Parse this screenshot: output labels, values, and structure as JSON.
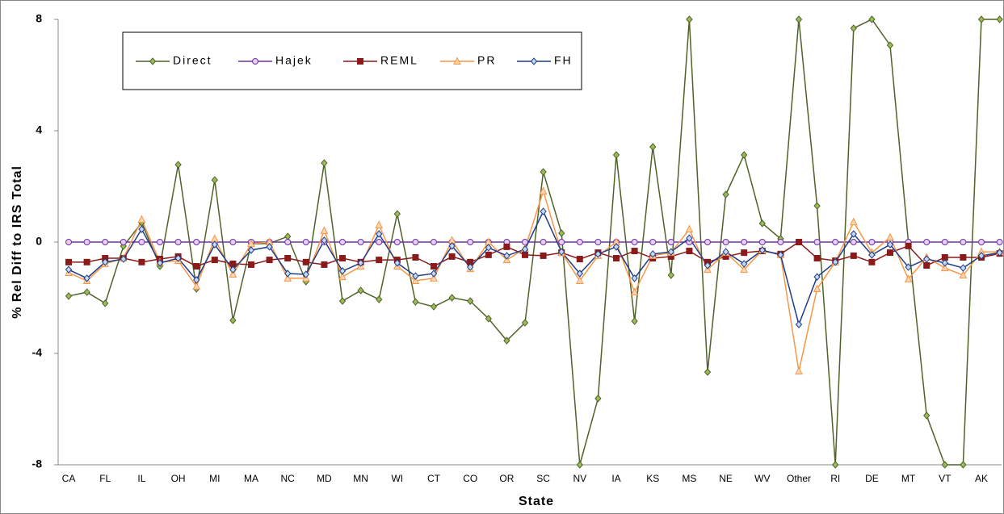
{
  "chart_data": {
    "type": "line",
    "x_label": "State",
    "y_label": "% Rel Diff to IRS Total",
    "categories": [
      "CA",
      null,
      "FL",
      null,
      "IL",
      null,
      "OH",
      null,
      "MI",
      null,
      "MA",
      null,
      "NC",
      null,
      "MD",
      null,
      "MN",
      null,
      "WI",
      null,
      "CT",
      null,
      "CO",
      null,
      "OR",
      null,
      "SC",
      null,
      "NV",
      null,
      "IA",
      null,
      "KS",
      null,
      "MS",
      null,
      "NE",
      null,
      "WV",
      null,
      "Other",
      null,
      "RI",
      null,
      "DE",
      null,
      "MT",
      null,
      "VT",
      null,
      "AK",
      null
    ],
    "ylim": [
      -8,
      8
    ],
    "yticks": [
      -8,
      -4,
      0,
      4,
      8
    ],
    "series": [
      {
        "name": "Direct",
        "color": "#4f6228",
        "marker": "diamond",
        "values": [
          -1.94,
          -1.8,
          -2.2,
          -0.15,
          0.7,
          -0.87,
          2.78,
          -1.68,
          2.23,
          -2.81,
          -0.06,
          -0.05,
          0.2,
          -1.42,
          2.84,
          -2.12,
          -1.74,
          -2.06,
          1.01,
          -2.15,
          -2.32,
          -2.0,
          -2.12,
          -2.75,
          -3.54,
          -2.9,
          2.52,
          0.32,
          -8,
          -5.62,
          3.13,
          -2.84,
          3.42,
          -1.19,
          8,
          -4.67,
          1.71,
          3.13,
          0.67,
          0.12,
          8,
          1.3,
          -8,
          7.68,
          8,
          7.07,
          0,
          -6.23,
          -8,
          -8,
          8,
          8
        ]
      },
      {
        "name": "Hajek",
        "color": "#7030a0",
        "marker": "circle",
        "values": [
          0,
          0,
          0,
          0,
          0,
          0,
          0,
          0,
          0,
          0,
          0,
          0,
          0,
          0,
          0,
          0,
          0,
          0,
          0,
          0,
          0,
          0,
          0,
          0,
          0,
          0,
          0,
          0,
          0,
          0,
          0,
          0,
          0,
          0,
          0,
          0,
          0,
          0,
          0,
          0,
          0,
          0,
          0,
          0,
          0,
          0,
          0,
          0,
          0,
          0,
          0,
          0
        ]
      },
      {
        "name": "REML",
        "color": "#8b1a1a",
        "marker": "square",
        "values": [
          -0.72,
          -0.72,
          -0.58,
          -0.58,
          -0.72,
          -0.61,
          -0.52,
          -0.87,
          -0.64,
          -0.78,
          -0.81,
          -0.64,
          -0.58,
          -0.72,
          -0.81,
          -0.58,
          -0.72,
          -0.64,
          -0.64,
          -0.55,
          -0.87,
          -0.52,
          -0.72,
          -0.46,
          -0.17,
          -0.46,
          -0.49,
          -0.38,
          -0.61,
          -0.38,
          -0.58,
          -0.32,
          -0.58,
          -0.52,
          -0.32,
          -0.72,
          -0.52,
          -0.38,
          -0.32,
          -0.43,
          0,
          -0.58,
          -0.67,
          -0.49,
          -0.72,
          -0.38,
          -0.14,
          -0.84,
          -0.55,
          -0.55,
          -0.55,
          -0.41
        ]
      },
      {
        "name": "PR",
        "color": "#f79646",
        "marker": "triangle",
        "values": [
          -1.1,
          -1.39,
          -0.78,
          -0.58,
          0.81,
          -0.72,
          -0.67,
          -1.59,
          0.12,
          -1.16,
          -0.06,
          0,
          -1.3,
          -1.3,
          0.41,
          -1.25,
          -0.87,
          0.61,
          -0.87,
          -1.39,
          -1.3,
          0.06,
          -0.96,
          0,
          -0.64,
          -0.23,
          1.83,
          -0.38,
          -1.39,
          -0.49,
          0,
          -1.8,
          -0.49,
          -0.38,
          0.46,
          -0.99,
          -0.38,
          -0.99,
          -0.29,
          -0.46,
          -4.64,
          -1.68,
          -0.72,
          0.72,
          -0.38,
          0.17,
          -1.33,
          -0.55,
          -0.93,
          -1.19,
          -0.35,
          -0.35
        ]
      },
      {
        "name": "FH",
        "color": "#1f3c88",
        "marker": "diamond",
        "values": [
          -0.99,
          -1.3,
          -0.72,
          -0.61,
          0.46,
          -0.75,
          -0.58,
          -1.36,
          -0.09,
          -0.99,
          -0.29,
          -0.17,
          -1.13,
          -1.16,
          0.06,
          -1.04,
          -0.75,
          0.29,
          -0.75,
          -1.22,
          -1.13,
          -0.14,
          -0.9,
          -0.2,
          -0.49,
          -0.26,
          1.1,
          -0.35,
          -1.13,
          -0.43,
          -0.17,
          -1.3,
          -0.43,
          -0.35,
          0.14,
          -0.84,
          -0.35,
          -0.78,
          -0.29,
          -0.46,
          -2.96,
          -1.25,
          -0.72,
          0.29,
          -0.46,
          -0.09,
          -0.9,
          -0.61,
          -0.75,
          -0.93,
          -0.49,
          -0.38
        ]
      }
    ]
  }
}
